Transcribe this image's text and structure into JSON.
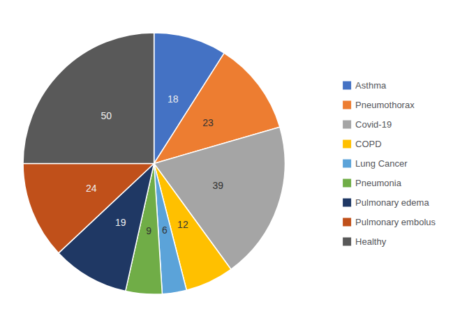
{
  "chart_data": {
    "type": "pie",
    "categories": [
      "Asthma",
      "Pneumothorax",
      "Covid-19",
      "COPD",
      "Lung Cancer",
      "Pneumonia",
      "Pulmonary edema",
      "Pulmonary embolus",
      "Healthy"
    ],
    "values": [
      18,
      23,
      39,
      12,
      6,
      9,
      19,
      24,
      50
    ],
    "colors": [
      "#4472C4",
      "#ED7D31",
      "#A5A5A5",
      "#FFC000",
      "#5BA3D9",
      "#70AD47",
      "#1F3864",
      "#C0501A",
      "#595959"
    ],
    "data_labels": true,
    "legend": "right"
  }
}
